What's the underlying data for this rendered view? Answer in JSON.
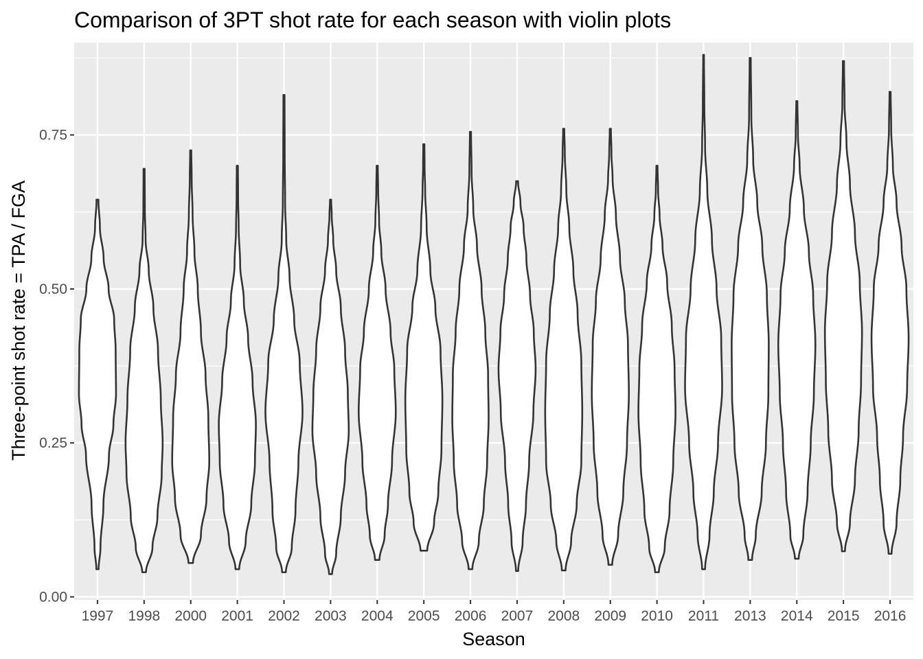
{
  "chart_data": {
    "type": "violin",
    "title": "Comparison of 3PT shot rate for each season with violin plots",
    "xlabel": "Season",
    "ylabel": "Three-point shot rate = TPA / FGA",
    "ylim": [
      -0.005,
      0.9
    ],
    "yticks": [
      0.0,
      0.25,
      0.5,
      0.75
    ],
    "ytick_labels": [
      "0.00",
      "0.25",
      "0.50",
      "0.75"
    ],
    "grid": true,
    "legend": "none",
    "colors": {
      "panel": "#ebebeb",
      "grid": "#ffffff",
      "violin_fill": "#ffffff",
      "violin_stroke": "#333333"
    },
    "categories": [
      "1997",
      "1998",
      "2000",
      "2001",
      "2002",
      "2003",
      "2004",
      "2005",
      "2006",
      "2007",
      "2008",
      "2009",
      "2010",
      "2011",
      "2013",
      "2014",
      "2015",
      "2016"
    ],
    "series": [
      {
        "category": "1997",
        "min": 0.045,
        "max": 0.645,
        "profile": [
          [
            0.045,
            0.06
          ],
          [
            0.08,
            0.16
          ],
          [
            0.15,
            0.32
          ],
          [
            0.23,
            0.62
          ],
          [
            0.28,
            0.86
          ],
          [
            0.33,
            1.0
          ],
          [
            0.4,
            0.98
          ],
          [
            0.45,
            0.9
          ],
          [
            0.5,
            0.6
          ],
          [
            0.55,
            0.33
          ],
          [
            0.6,
            0.13
          ],
          [
            0.645,
            0.05
          ]
        ]
      },
      {
        "category": "1998",
        "min": 0.04,
        "max": 0.695,
        "profile": [
          [
            0.04,
            0.1
          ],
          [
            0.08,
            0.45
          ],
          [
            0.13,
            0.72
          ],
          [
            0.2,
            0.95
          ],
          [
            0.25,
            1.0
          ],
          [
            0.32,
            0.9
          ],
          [
            0.4,
            0.75
          ],
          [
            0.47,
            0.5
          ],
          [
            0.53,
            0.25
          ],
          [
            0.58,
            0.08
          ],
          [
            0.63,
            0.04
          ],
          [
            0.695,
            0.03
          ]
        ]
      },
      {
        "category": "2000",
        "min": 0.055,
        "max": 0.725,
        "profile": [
          [
            0.055,
            0.12
          ],
          [
            0.1,
            0.55
          ],
          [
            0.16,
            0.85
          ],
          [
            0.22,
            1.0
          ],
          [
            0.29,
            0.95
          ],
          [
            0.36,
            0.8
          ],
          [
            0.43,
            0.55
          ],
          [
            0.5,
            0.38
          ],
          [
            0.56,
            0.2
          ],
          [
            0.62,
            0.1
          ],
          [
            0.68,
            0.05
          ],
          [
            0.725,
            0.03
          ]
        ]
      },
      {
        "category": "2001",
        "min": 0.045,
        "max": 0.7,
        "profile": [
          [
            0.045,
            0.1
          ],
          [
            0.09,
            0.45
          ],
          [
            0.15,
            0.75
          ],
          [
            0.22,
            0.95
          ],
          [
            0.28,
            1.0
          ],
          [
            0.35,
            0.82
          ],
          [
            0.42,
            0.58
          ],
          [
            0.48,
            0.35
          ],
          [
            0.54,
            0.15
          ],
          [
            0.6,
            0.07
          ],
          [
            0.65,
            0.04
          ],
          [
            0.7,
            0.03
          ]
        ]
      },
      {
        "category": "2002",
        "min": 0.04,
        "max": 0.815,
        "profile": [
          [
            0.04,
            0.1
          ],
          [
            0.08,
            0.42
          ],
          [
            0.14,
            0.62
          ],
          [
            0.22,
            0.78
          ],
          [
            0.3,
            1.0
          ],
          [
            0.38,
            0.85
          ],
          [
            0.45,
            0.55
          ],
          [
            0.52,
            0.3
          ],
          [
            0.58,
            0.12
          ],
          [
            0.64,
            0.06
          ],
          [
            0.72,
            0.04
          ],
          [
            0.815,
            0.03
          ]
        ]
      },
      {
        "category": "2003",
        "min": 0.037,
        "max": 0.645,
        "profile": [
          [
            0.037,
            0.08
          ],
          [
            0.07,
            0.3
          ],
          [
            0.13,
            0.55
          ],
          [
            0.2,
            0.78
          ],
          [
            0.27,
            0.98
          ],
          [
            0.33,
            0.93
          ],
          [
            0.4,
            0.78
          ],
          [
            0.47,
            0.55
          ],
          [
            0.53,
            0.3
          ],
          [
            0.58,
            0.14
          ],
          [
            0.62,
            0.06
          ],
          [
            0.645,
            0.03
          ]
        ]
      },
      {
        "category": "2004",
        "min": 0.06,
        "max": 0.7,
        "profile": [
          [
            0.06,
            0.12
          ],
          [
            0.1,
            0.4
          ],
          [
            0.15,
            0.58
          ],
          [
            0.22,
            0.8
          ],
          [
            0.3,
            1.0
          ],
          [
            0.37,
            0.92
          ],
          [
            0.43,
            0.72
          ],
          [
            0.5,
            0.45
          ],
          [
            0.56,
            0.22
          ],
          [
            0.61,
            0.1
          ],
          [
            0.66,
            0.05
          ],
          [
            0.7,
            0.03
          ]
        ]
      },
      {
        "category": "2005",
        "min": 0.075,
        "max": 0.735,
        "profile": [
          [
            0.075,
            0.18
          ],
          [
            0.12,
            0.55
          ],
          [
            0.17,
            0.78
          ],
          [
            0.24,
            0.95
          ],
          [
            0.32,
            1.0
          ],
          [
            0.4,
            0.9
          ],
          [
            0.47,
            0.62
          ],
          [
            0.53,
            0.35
          ],
          [
            0.6,
            0.15
          ],
          [
            0.66,
            0.07
          ],
          [
            0.7,
            0.04
          ],
          [
            0.735,
            0.03
          ]
        ]
      },
      {
        "category": "2006",
        "min": 0.045,
        "max": 0.755,
        "profile": [
          [
            0.045,
            0.1
          ],
          [
            0.09,
            0.45
          ],
          [
            0.15,
            0.72
          ],
          [
            0.22,
            0.9
          ],
          [
            0.29,
            0.98
          ],
          [
            0.36,
            0.95
          ],
          [
            0.43,
            0.8
          ],
          [
            0.5,
            0.6
          ],
          [
            0.57,
            0.35
          ],
          [
            0.63,
            0.15
          ],
          [
            0.69,
            0.06
          ],
          [
            0.755,
            0.03
          ]
        ]
      },
      {
        "category": "2007",
        "min": 0.042,
        "max": 0.675,
        "profile": [
          [
            0.042,
            0.06
          ],
          [
            0.09,
            0.3
          ],
          [
            0.15,
            0.48
          ],
          [
            0.22,
            0.65
          ],
          [
            0.3,
            0.88
          ],
          [
            0.37,
            1.0
          ],
          [
            0.43,
            0.9
          ],
          [
            0.49,
            0.7
          ],
          [
            0.55,
            0.5
          ],
          [
            0.6,
            0.35
          ],
          [
            0.64,
            0.18
          ],
          [
            0.675,
            0.05
          ]
        ]
      },
      {
        "category": "2008",
        "min": 0.043,
        "max": 0.76,
        "profile": [
          [
            0.043,
            0.1
          ],
          [
            0.09,
            0.4
          ],
          [
            0.15,
            0.7
          ],
          [
            0.22,
            0.95
          ],
          [
            0.3,
            1.0
          ],
          [
            0.38,
            0.95
          ],
          [
            0.46,
            0.75
          ],
          [
            0.53,
            0.52
          ],
          [
            0.6,
            0.3
          ],
          [
            0.66,
            0.14
          ],
          [
            0.72,
            0.06
          ],
          [
            0.76,
            0.03
          ]
        ]
      },
      {
        "category": "2009",
        "min": 0.052,
        "max": 0.76,
        "profile": [
          [
            0.052,
            0.1
          ],
          [
            0.1,
            0.42
          ],
          [
            0.17,
            0.7
          ],
          [
            0.25,
            0.9
          ],
          [
            0.33,
            1.0
          ],
          [
            0.41,
            0.95
          ],
          [
            0.48,
            0.78
          ],
          [
            0.55,
            0.52
          ],
          [
            0.62,
            0.3
          ],
          [
            0.68,
            0.12
          ],
          [
            0.72,
            0.06
          ],
          [
            0.76,
            0.03
          ]
        ]
      },
      {
        "category": "2010",
        "min": 0.04,
        "max": 0.7,
        "profile": [
          [
            0.04,
            0.1
          ],
          [
            0.08,
            0.42
          ],
          [
            0.14,
            0.68
          ],
          [
            0.22,
            0.88
          ],
          [
            0.3,
            1.0
          ],
          [
            0.37,
            0.95
          ],
          [
            0.44,
            0.8
          ],
          [
            0.51,
            0.55
          ],
          [
            0.57,
            0.3
          ],
          [
            0.62,
            0.14
          ],
          [
            0.66,
            0.06
          ],
          [
            0.7,
            0.03
          ]
        ]
      },
      {
        "category": "2011",
        "min": 0.045,
        "max": 0.88,
        "profile": [
          [
            0.045,
            0.08
          ],
          [
            0.1,
            0.32
          ],
          [
            0.17,
            0.55
          ],
          [
            0.25,
            0.78
          ],
          [
            0.34,
            1.0
          ],
          [
            0.42,
            0.95
          ],
          [
            0.5,
            0.7
          ],
          [
            0.58,
            0.45
          ],
          [
            0.66,
            0.2
          ],
          [
            0.73,
            0.08
          ],
          [
            0.8,
            0.04
          ],
          [
            0.88,
            0.02
          ]
        ]
      },
      {
        "category": "2013",
        "min": 0.06,
        "max": 0.875,
        "profile": [
          [
            0.06,
            0.1
          ],
          [
            0.1,
            0.3
          ],
          [
            0.17,
            0.62
          ],
          [
            0.25,
            0.85
          ],
          [
            0.33,
            0.98
          ],
          [
            0.41,
            1.0
          ],
          [
            0.49,
            0.9
          ],
          [
            0.57,
            0.65
          ],
          [
            0.64,
            0.38
          ],
          [
            0.71,
            0.16
          ],
          [
            0.78,
            0.06
          ],
          [
            0.875,
            0.03
          ]
        ]
      },
      {
        "category": "2014",
        "min": 0.062,
        "max": 0.805,
        "profile": [
          [
            0.062,
            0.1
          ],
          [
            0.1,
            0.35
          ],
          [
            0.17,
            0.58
          ],
          [
            0.25,
            0.75
          ],
          [
            0.33,
            0.92
          ],
          [
            0.41,
            1.0
          ],
          [
            0.49,
            0.88
          ],
          [
            0.56,
            0.65
          ],
          [
            0.63,
            0.38
          ],
          [
            0.7,
            0.15
          ],
          [
            0.75,
            0.06
          ],
          [
            0.805,
            0.03
          ]
        ]
      },
      {
        "category": "2015",
        "min": 0.074,
        "max": 0.87,
        "profile": [
          [
            0.074,
            0.08
          ],
          [
            0.12,
            0.35
          ],
          [
            0.19,
            0.62
          ],
          [
            0.27,
            0.82
          ],
          [
            0.35,
            0.95
          ],
          [
            0.43,
            1.0
          ],
          [
            0.51,
            0.88
          ],
          [
            0.59,
            0.62
          ],
          [
            0.67,
            0.35
          ],
          [
            0.74,
            0.16
          ],
          [
            0.8,
            0.06
          ],
          [
            0.87,
            0.03
          ]
        ]
      },
      {
        "category": "2016",
        "min": 0.07,
        "max": 0.82,
        "profile": [
          [
            0.07,
            0.08
          ],
          [
            0.12,
            0.35
          ],
          [
            0.19,
            0.55
          ],
          [
            0.26,
            0.7
          ],
          [
            0.34,
            0.92
          ],
          [
            0.42,
            1.0
          ],
          [
            0.5,
            0.88
          ],
          [
            0.57,
            0.62
          ],
          [
            0.64,
            0.35
          ],
          [
            0.7,
            0.15
          ],
          [
            0.76,
            0.06
          ],
          [
            0.82,
            0.03
          ]
        ]
      }
    ]
  }
}
